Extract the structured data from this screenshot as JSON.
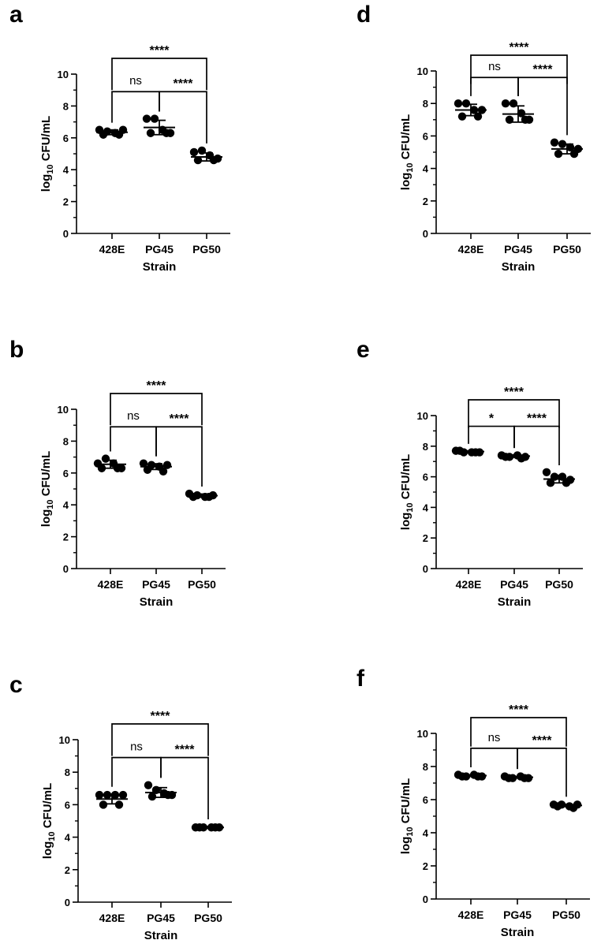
{
  "figure": {
    "xlabel": "Strain",
    "ylabel_prefix": "log",
    "ylabel_sub": "10",
    "ylabel_suffix": " CFU/mL"
  },
  "chart_data": [
    {
      "panel": "a",
      "type": "scatter",
      "categories": [
        "428E",
        "PG45",
        "PG50"
      ],
      "xlabel": "Strain",
      "ylabel": "log10 CFU/mL",
      "ylim": [
        0,
        10
      ],
      "yticks": [
        0,
        2,
        4,
        6,
        8,
        10
      ],
      "series": [
        {
          "name": "428E",
          "points": [
            6.5,
            6.4,
            6.3,
            6.5,
            6.2,
            6.2
          ],
          "mean": 6.35,
          "sd": 0.15
        },
        {
          "name": "PG45",
          "points": [
            7.2,
            7.2,
            6.5,
            6.3,
            6.3,
            6.3
          ],
          "mean": 6.65,
          "sd": 0.45
        },
        {
          "name": "PG50",
          "points": [
            5.1,
            5.2,
            4.9,
            4.7,
            4.6,
            4.6
          ],
          "mean": 4.8,
          "sd": 0.25
        }
      ],
      "comparisons": [
        {
          "from": "428E",
          "to": "PG45",
          "label": "ns"
        },
        {
          "from": "PG45",
          "to": "PG50",
          "label": "****"
        },
        {
          "from": "428E",
          "to": "PG50",
          "label": "****"
        }
      ]
    },
    {
      "panel": "b",
      "type": "scatter",
      "categories": [
        "428E",
        "PG45",
        "PG50"
      ],
      "xlabel": "Strain",
      "ylabel": "log10 CFU/mL",
      "ylim": [
        0,
        10
      ],
      "yticks": [
        0,
        2,
        4,
        6,
        8,
        10
      ],
      "series": [
        {
          "name": "428E",
          "points": [
            6.6,
            6.9,
            6.6,
            6.3,
            6.3,
            6.3
          ],
          "mean": 6.55,
          "sd": 0.25
        },
        {
          "name": "PG45",
          "points": [
            6.6,
            6.5,
            6.4,
            6.5,
            6.2,
            6.1
          ],
          "mean": 6.4,
          "sd": 0.18
        },
        {
          "name": "PG50",
          "points": [
            4.7,
            4.6,
            4.5,
            4.6,
            4.5,
            4.5
          ],
          "mean": 4.58,
          "sd": 0.1
        }
      ],
      "comparisons": [
        {
          "from": "428E",
          "to": "PG45",
          "label": "ns"
        },
        {
          "from": "PG45",
          "to": "PG50",
          "label": "****"
        },
        {
          "from": "428E",
          "to": "PG50",
          "label": "****"
        }
      ]
    },
    {
      "panel": "c",
      "type": "scatter",
      "categories": [
        "428E",
        "PG45",
        "PG50"
      ],
      "xlabel": "Strain",
      "ylabel": "log10 CFU/mL",
      "ylim": [
        0,
        10
      ],
      "yticks": [
        0,
        2,
        4,
        6,
        8,
        10
      ],
      "series": [
        {
          "name": "428E",
          "points": [
            6.6,
            6.6,
            6.6,
            6.6,
            6.0,
            6.0
          ],
          "mean": 6.35,
          "sd": 0.3
        },
        {
          "name": "PG45",
          "points": [
            7.2,
            6.9,
            6.7,
            6.6,
            6.5,
            6.6
          ],
          "mean": 6.75,
          "sd": 0.3
        },
        {
          "name": "PG50",
          "points": [
            4.6,
            4.6,
            4.6,
            4.6,
            4.6,
            4.6
          ],
          "mean": 4.6,
          "sd": 0.05
        }
      ],
      "comparisons": [
        {
          "from": "428E",
          "to": "PG45",
          "label": "ns"
        },
        {
          "from": "PG45",
          "to": "PG50",
          "label": "****"
        },
        {
          "from": "428E",
          "to": "PG50",
          "label": "****"
        }
      ]
    },
    {
      "panel": "d",
      "type": "scatter",
      "categories": [
        "428E",
        "PG45",
        "PG50"
      ],
      "xlabel": "Strain",
      "ylabel": "log10 CFU/mL",
      "ylim": [
        0,
        10
      ],
      "yticks": [
        0,
        2,
        4,
        6,
        8,
        10
      ],
      "series": [
        {
          "name": "428E",
          "points": [
            8.0,
            8.0,
            7.6,
            7.6,
            7.2,
            7.2
          ],
          "mean": 7.6,
          "sd": 0.35
        },
        {
          "name": "PG45",
          "points": [
            8.0,
            8.0,
            7.4,
            7.0,
            7.0,
            7.0
          ],
          "mean": 7.35,
          "sd": 0.5
        },
        {
          "name": "PG50",
          "points": [
            5.6,
            5.5,
            5.3,
            5.2,
            4.9,
            4.9
          ],
          "mean": 5.2,
          "sd": 0.3
        }
      ],
      "comparisons": [
        {
          "from": "428E",
          "to": "PG45",
          "label": "ns"
        },
        {
          "from": "PG45",
          "to": "PG50",
          "label": "****"
        },
        {
          "from": "428E",
          "to": "PG50",
          "label": "****"
        }
      ]
    },
    {
      "panel": "e",
      "type": "scatter",
      "categories": [
        "428E",
        "PG45",
        "PG50"
      ],
      "xlabel": "Strain",
      "ylabel": "log10 CFU/mL",
      "ylim": [
        0,
        10
      ],
      "yticks": [
        0,
        2,
        4,
        6,
        8,
        10
      ],
      "series": [
        {
          "name": "428E",
          "points": [
            7.7,
            7.6,
            7.6,
            7.6,
            7.7,
            7.6
          ],
          "mean": 7.65,
          "sd": 0.05
        },
        {
          "name": "PG45",
          "points": [
            7.4,
            7.3,
            7.4,
            7.3,
            7.3,
            7.2
          ],
          "mean": 7.35,
          "sd": 0.08
        },
        {
          "name": "PG50",
          "points": [
            6.3,
            6.0,
            6.0,
            5.8,
            5.6,
            5.6
          ],
          "mean": 5.85,
          "sd": 0.25
        }
      ],
      "comparisons": [
        {
          "from": "428E",
          "to": "PG45",
          "label": "*"
        },
        {
          "from": "PG45",
          "to": "PG50",
          "label": "****"
        },
        {
          "from": "428E",
          "to": "PG50",
          "label": "****"
        }
      ]
    },
    {
      "panel": "f",
      "type": "scatter",
      "categories": [
        "428E",
        "PG45",
        "PG50"
      ],
      "xlabel": "Strain",
      "ylabel": "log10 CFU/mL",
      "ylim": [
        0,
        10
      ],
      "yticks": [
        0,
        2,
        4,
        6,
        8,
        10
      ],
      "series": [
        {
          "name": "428E",
          "points": [
            7.5,
            7.4,
            7.5,
            7.4,
            7.4,
            7.4
          ],
          "mean": 7.45,
          "sd": 0.05
        },
        {
          "name": "PG45",
          "points": [
            7.4,
            7.3,
            7.4,
            7.3,
            7.3,
            7.3
          ],
          "mean": 7.35,
          "sd": 0.05
        },
        {
          "name": "PG50",
          "points": [
            5.7,
            5.7,
            5.6,
            5.7,
            5.6,
            5.5
          ],
          "mean": 5.65,
          "sd": 0.07
        }
      ],
      "comparisons": [
        {
          "from": "428E",
          "to": "PG45",
          "label": "ns"
        },
        {
          "from": "PG45",
          "to": "PG50",
          "label": "****"
        },
        {
          "from": "428E",
          "to": "PG50",
          "label": "****"
        }
      ]
    }
  ]
}
